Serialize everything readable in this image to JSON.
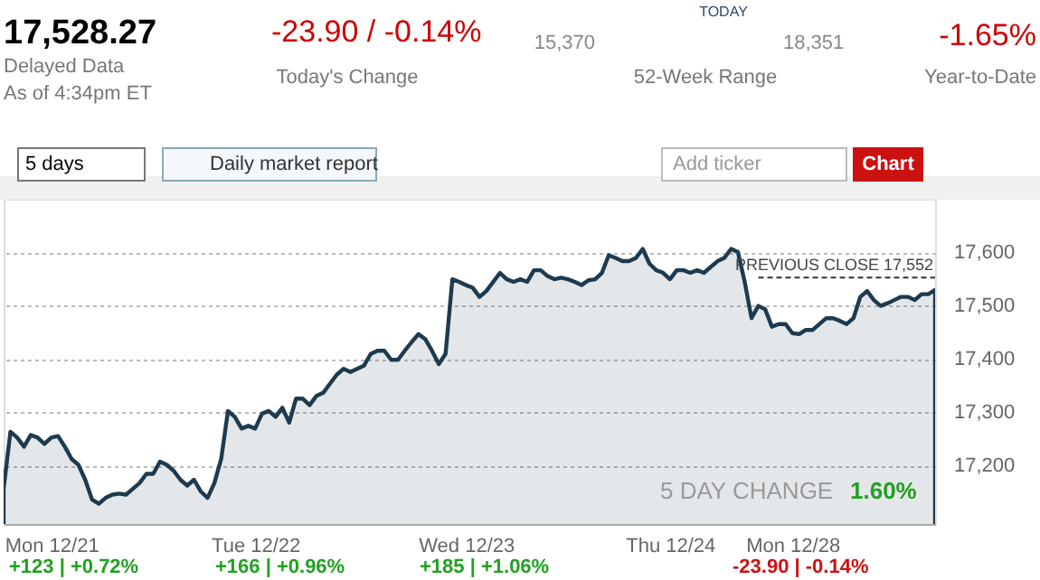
{
  "chart_data": {
    "type": "area",
    "title": "17,528.27",
    "categories": [
      null,
      null,
      null,
      null,
      null,
      null,
      null,
      "Mon 12/21",
      null,
      null,
      null,
      null,
      null,
      null,
      null,
      null,
      null,
      null,
      null,
      null,
      null,
      null,
      null,
      null,
      null,
      null,
      null,
      null,
      null,
      null,
      null,
      null,
      null,
      null,
      null,
      null,
      null,
      "Tue 12/22",
      null,
      null,
      null,
      null,
      null,
      null,
      null,
      null,
      null,
      null,
      null,
      null,
      null,
      null,
      null,
      null,
      null,
      null,
      null,
      null,
      null,
      null,
      null,
      null,
      null,
      null,
      null,
      null,
      null,
      null,
      "Wed 12/23",
      null,
      null,
      null,
      null,
      null,
      null,
      null,
      null,
      null,
      null,
      null,
      null,
      null,
      null,
      null,
      null,
      null,
      null,
      null,
      null,
      null,
      null,
      null,
      null,
      null,
      null,
      null,
      null,
      null,
      "Thu 12/24",
      null,
      null,
      null,
      null,
      null,
      null,
      null,
      null,
      null,
      null,
      null,
      null,
      null,
      null,
      null,
      null,
      null,
      "Mon 12/28",
      null,
      null,
      null,
      null,
      null,
      null,
      null,
      null,
      null,
      null,
      null,
      null,
      null,
      null,
      null,
      null,
      null,
      null,
      null,
      null,
      null
    ],
    "series": [
      {
        "color": "#1e3a4f",
        "values": [
          17156,
          17263,
          17252,
          17235,
          17257,
          17252,
          17240,
          17252,
          17255,
          17235,
          17212,
          17201,
          17173,
          17136,
          17128,
          17139,
          17145,
          17147,
          17145,
          17156,
          17167,
          17184,
          17184,
          17207,
          17201,
          17190,
          17173,
          17162,
          17173,
          17151,
          17139,
          17167,
          17212,
          17302,
          17291,
          17269,
          17274,
          17269,
          17297,
          17302,
          17291,
          17308,
          17280,
          17325,
          17325,
          17313,
          17330,
          17336,
          17353,
          17370,
          17381,
          17375,
          17381,
          17387,
          17409,
          17415,
          17415,
          17398,
          17398,
          17415,
          17431,
          17446,
          17437,
          17415,
          17390,
          17409,
          17549,
          17544,
          17538,
          17533,
          17516,
          17527,
          17544,
          17561,
          17549,
          17544,
          17549,
          17544,
          17566,
          17566,
          17555,
          17549,
          17552,
          17549,
          17544,
          17538,
          17547,
          17549,
          17561,
          17594,
          17589,
          17583,
          17583,
          17589,
          17606,
          17578,
          17566,
          17561,
          17549,
          17566,
          17566,
          17561,
          17566,
          17561,
          17572,
          17583,
          17589,
          17606,
          17600,
          17544,
          17476,
          17499,
          17493,
          17460,
          17465,
          17465,
          17448,
          17446,
          17454,
          17454,
          17465,
          17476,
          17476,
          17471,
          17465,
          17476,
          17516,
          17527,
          17510,
          17499,
          17504,
          17510,
          17516,
          17516,
          17510,
          17521,
          17521,
          17529
        ]
      }
    ],
    "ylim": [
      17090,
      17700
    ],
    "yticks": [
      {
        "value": 17200,
        "label": "17,200"
      },
      {
        "value": 17300,
        "label": "17,300"
      },
      {
        "value": 17400,
        "label": "17,400"
      },
      {
        "value": 17500,
        "label": "17,500"
      },
      {
        "value": 17600,
        "label": "17,600"
      }
    ],
    "grid": "y",
    "ref_lines": [
      {
        "axis": "y",
        "value": 17552,
        "label": "PREVIOUS CLOSE 17,552",
        "line_style": "dashed",
        "color": "#333333"
      }
    ],
    "annotations": [
      "Delayed Data",
      "As of 4:34pm ET",
      "-23.90 / -0.14%",
      "Today's Change",
      "15,370",
      "TODAY",
      "18,351",
      "52-Week Range",
      "-1.65%",
      "Year-to-Date",
      "5 days",
      "Daily market report",
      "Add ticker",
      "Chart",
      "5 DAY CHANGE",
      "1.60%",
      "+123 | +0.72%",
      "+166 | +0.96%",
      "+185 | +1.06%",
      "-23.90 | -0.14%"
    ]
  }
}
